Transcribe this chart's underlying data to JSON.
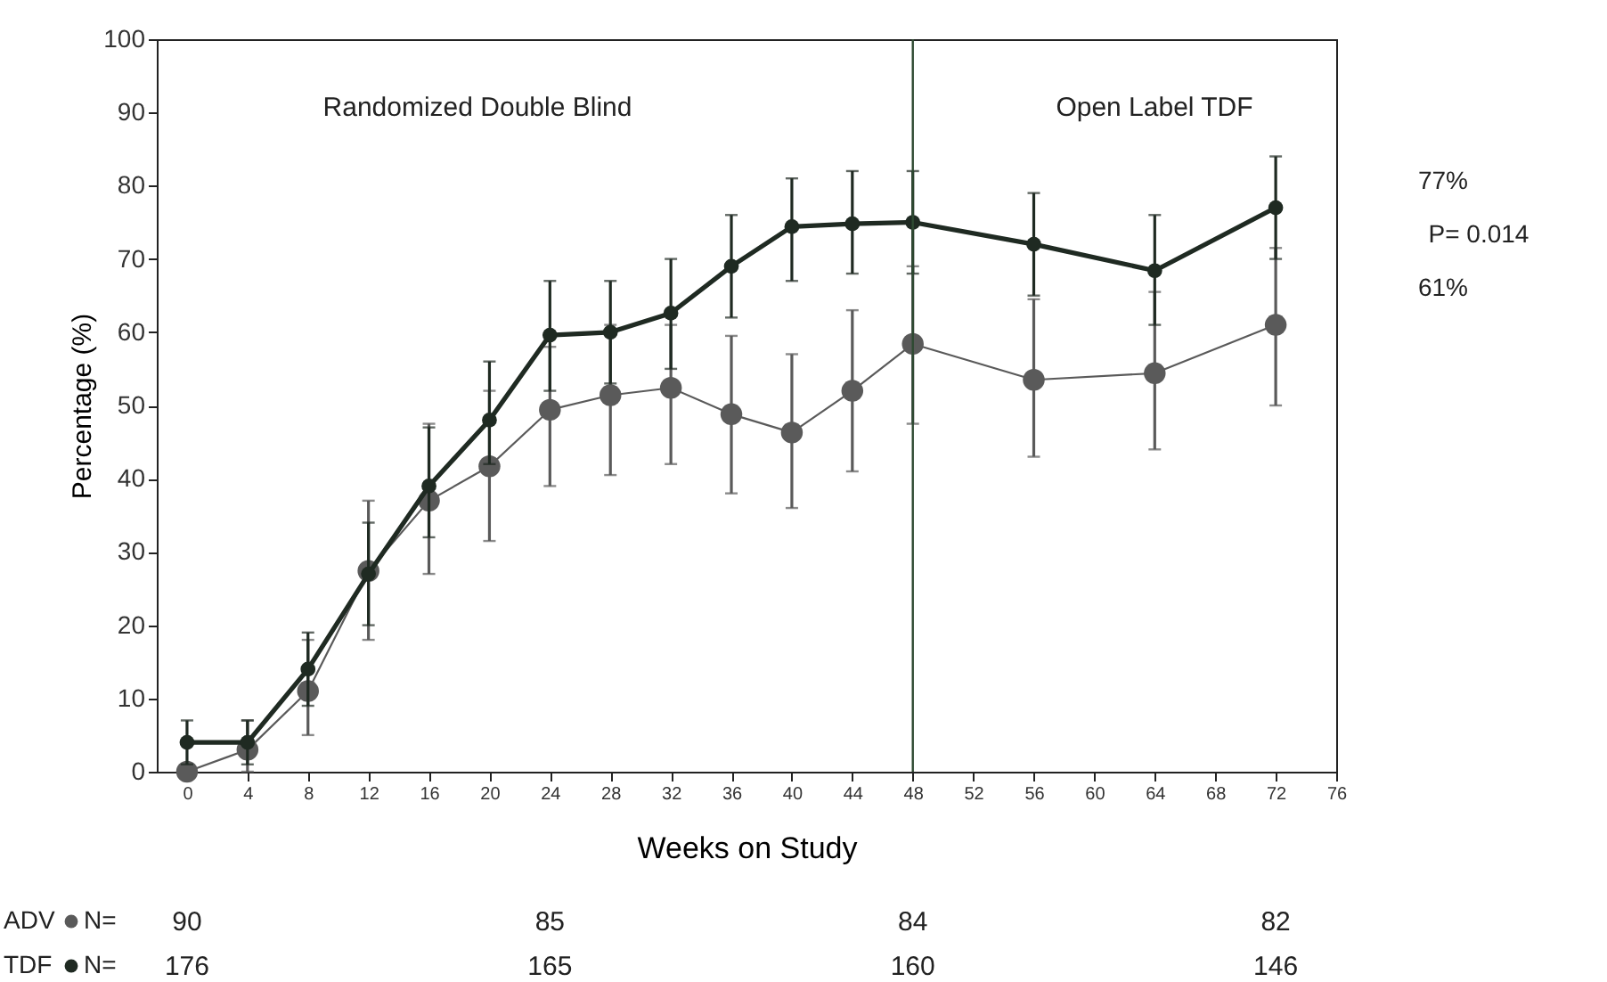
{
  "chart_data": {
    "type": "line",
    "xlabel": "Weeks on Study",
    "ylabel": "Percentage (%)",
    "x": [
      0,
      4,
      8,
      12,
      16,
      20,
      24,
      28,
      32,
      36,
      40,
      44,
      48,
      56,
      64,
      72
    ],
    "series": [
      {
        "name": "ADV",
        "color": "#5a5a5a",
        "values": [
          0,
          3,
          11,
          27.4,
          37,
          41.7,
          49.4,
          51.4,
          52.4,
          48.8,
          46.3,
          52,
          58.4,
          53.5,
          54.4,
          61
        ],
        "errors": [
          null,
          [
            0,
            7
          ],
          [
            5,
            18
          ],
          [
            18,
            37
          ],
          [
            27,
            47.5
          ],
          [
            31.5,
            52
          ],
          [
            39,
            58
          ],
          [
            40.5,
            61
          ],
          [
            42,
            61
          ],
          [
            38,
            59.5
          ],
          [
            36,
            57
          ],
          [
            41,
            63
          ],
          [
            47.5,
            69
          ],
          [
            43,
            64.5
          ],
          [
            44,
            65.5
          ],
          [
            50,
            71.5
          ]
        ]
      },
      {
        "name": "TDF",
        "color": "#1f2a22",
        "values": [
          4,
          4,
          14,
          27,
          39,
          48,
          59.6,
          60,
          62.6,
          69,
          74.4,
          74.8,
          75,
          72,
          68.4,
          77
        ],
        "errors": [
          [
            1,
            7
          ],
          [
            1,
            7
          ],
          [
            9,
            19
          ],
          [
            20,
            34
          ],
          [
            32,
            47
          ],
          [
            42,
            56
          ],
          [
            52,
            67
          ],
          [
            53,
            67
          ],
          [
            55,
            70
          ],
          [
            62,
            76
          ],
          [
            67,
            81
          ],
          [
            68,
            82
          ],
          [
            68,
            82
          ],
          [
            65,
            79
          ],
          [
            61,
            76
          ],
          [
            70,
            84
          ]
        ]
      }
    ],
    "xlim": [
      -2,
      76
    ],
    "xticks": [
      0,
      4,
      8,
      12,
      16,
      20,
      24,
      28,
      32,
      36,
      40,
      44,
      48,
      52,
      56,
      60,
      64,
      68,
      72,
      76
    ],
    "ylim": [
      0,
      100
    ],
    "yticks": [
      0,
      10,
      20,
      30,
      40,
      50,
      60,
      70,
      80,
      90,
      100
    ],
    "grid": false,
    "legend": "bottom left",
    "marker": "circle",
    "line_style": "solid",
    "ref_lines": [
      {
        "axis": "x",
        "value": 48,
        "color": "#2e4a32"
      }
    ],
    "annotations": [
      "Randomized Double Blind",
      "Open Label TDF",
      "77%",
      "P= 0.014",
      "61%",
      "N=",
      "90",
      "85",
      "84",
      "82",
      "N=",
      "176",
      "165",
      "160",
      "146"
    ]
  }
}
